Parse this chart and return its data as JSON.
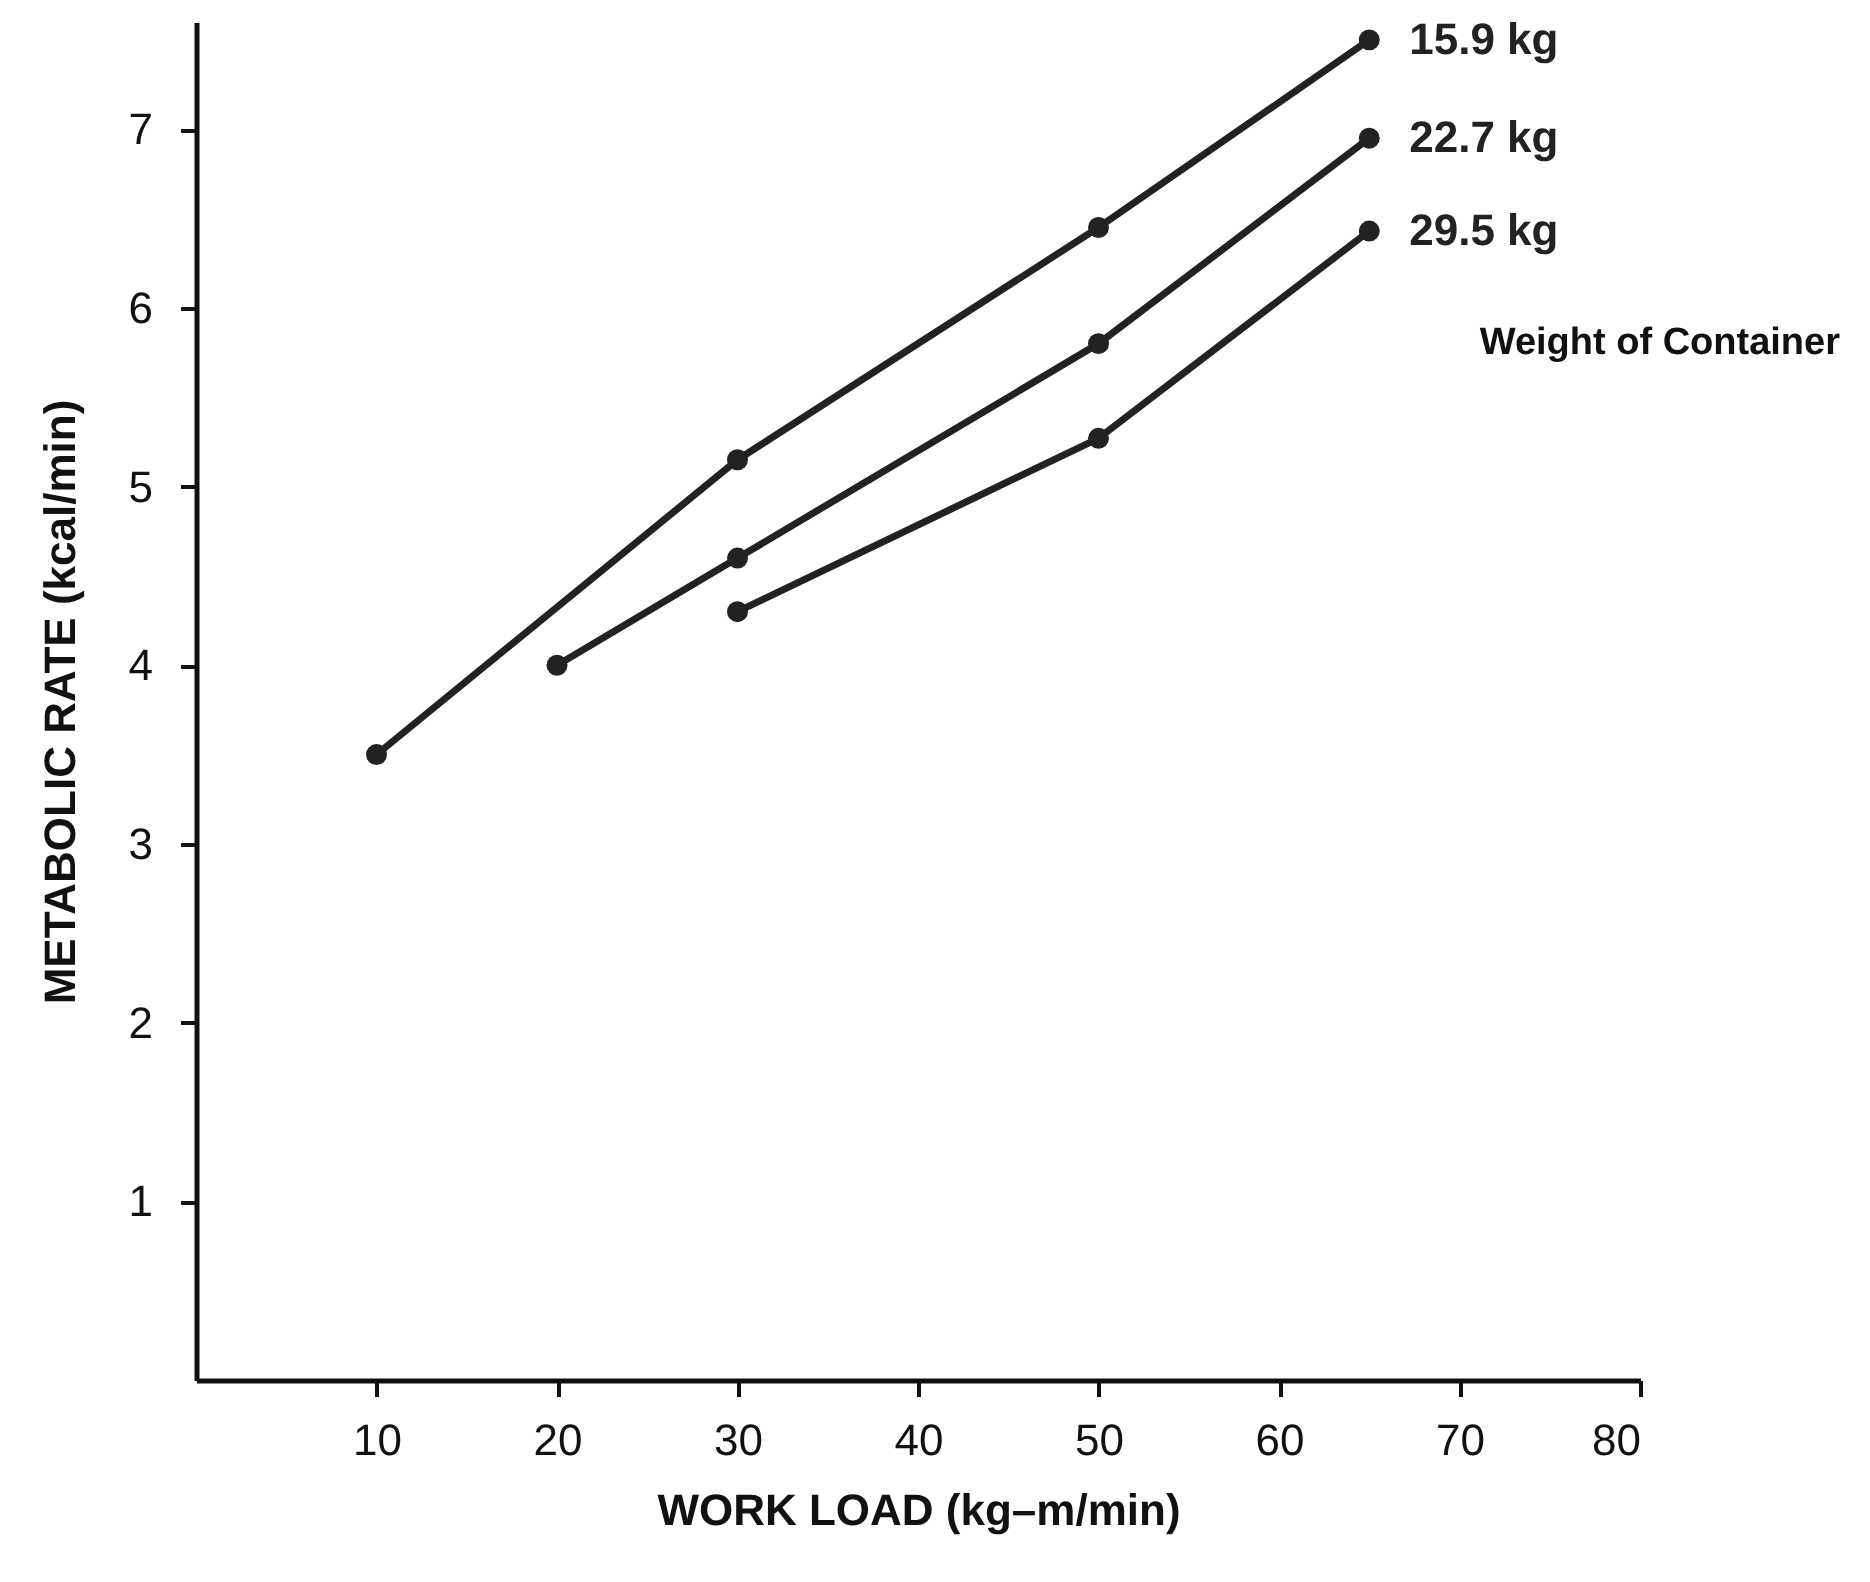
{
  "chart_data": {
    "type": "line",
    "xlabel": "WORK LOAD (kg–m/min)",
    "ylabel": "METABOLIC RATE (kcal/min)",
    "legend_title": "Weight of Container",
    "xlim": [
      0,
      80
    ],
    "xticks": [
      10,
      20,
      30,
      40,
      50,
      60,
      70,
      80
    ],
    "ylim": [
      0,
      7.6
    ],
    "yticks": [
      1,
      2,
      3,
      4,
      5,
      6,
      7
    ],
    "grid": false,
    "marker": "circle",
    "line_style": "solid",
    "series": [
      {
        "name": "15.9 kg",
        "color": "#222222",
        "x": [
          10,
          30,
          50,
          65
        ],
        "values": [
          3.5,
          5.15,
          6.45,
          7.5
        ]
      },
      {
        "name": "22.7 kg",
        "color": "#222222",
        "x": [
          20,
          30,
          50,
          65
        ],
        "values": [
          4.0,
          4.6,
          5.8,
          6.95
        ]
      },
      {
        "name": "29.5 kg",
        "color": "#222222",
        "x": [
          30,
          50,
          65
        ],
        "values": [
          4.3,
          5.27,
          6.43
        ]
      }
    ]
  }
}
